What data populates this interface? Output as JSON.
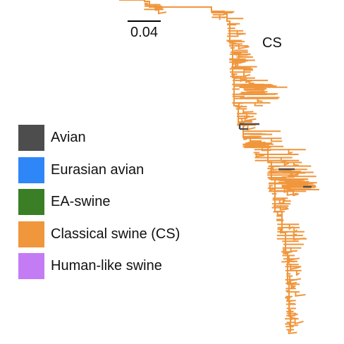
{
  "colors": {
    "avian": "#4d4d4d",
    "eurasian_avian": "#2f86f7",
    "ea_swine": "#3a7e25",
    "classical_swine": "#f0963c",
    "human_like_swine": "#c47cf5"
  },
  "scale_bar": {
    "label": "0.04"
  },
  "clade": {
    "label": "CS"
  },
  "legend": [
    {
      "label": "Avian",
      "color": "#4d4d4d"
    },
    {
      "label": "Eurasian avian",
      "color": "#2f86f7"
    },
    {
      "label": "EA-swine",
      "color": "#3a7e25"
    },
    {
      "label": "Classical swine (CS)",
      "color": "#f0963c"
    },
    {
      "label": "Human-like swine",
      "color": "#c47cf5"
    }
  ]
}
